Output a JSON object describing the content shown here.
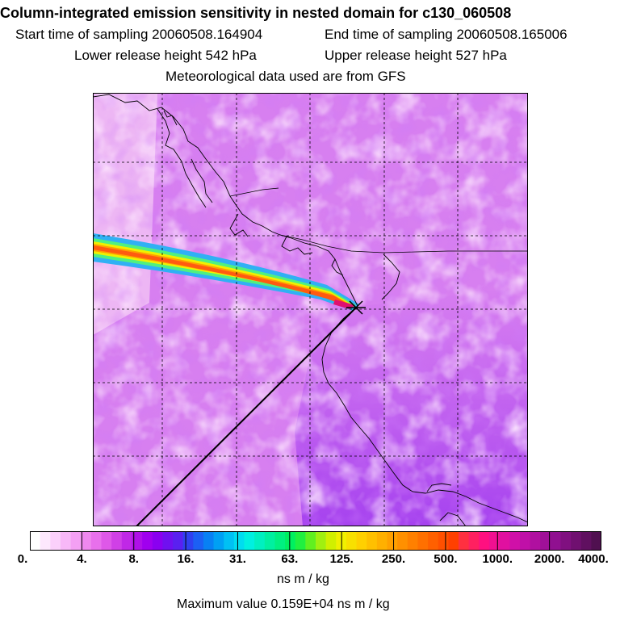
{
  "header": {
    "title": "Column-integrated emission sensitivity in nested domain for c130_060508",
    "start_time": "Start time of sampling 20060508.164904",
    "end_time": "End time of sampling 20060508.165006",
    "lower_height": "Lower release height  542 hPa",
    "upper_height": "Upper release height  527 hPa",
    "met_data": "Meteorological data used are from GFS"
  },
  "colorbar": {
    "labels": [
      "0.",
      "4.",
      "8.",
      "16.",
      "31.",
      "63.",
      "125.",
      "250.",
      "500.",
      "1000.",
      "2000.",
      "4000."
    ],
    "colors": [
      "#ffffff",
      "#fde8fd",
      "#fbd0fb",
      "#f8b8f8",
      "#f4a0f4",
      "#ef88ef",
      "#e870ec",
      "#de58e8",
      "#d040e6",
      "#c028e6",
      "#b010e8",
      "#a000ee",
      "#8a00f0",
      "#7010f0",
      "#5a20f0",
      "#3040f0",
      "#1c60f4",
      "#0880f4",
      "#00a0f4",
      "#00c0f4",
      "#00dcf0",
      "#00f0e0",
      "#00f0c0",
      "#00f0a0",
      "#00f080",
      "#00f060",
      "#20f040",
      "#60f020",
      "#a0f010",
      "#d0f000",
      "#f0f000",
      "#f8e000",
      "#ffd000",
      "#ffc000",
      "#ffb000",
      "#ffa000",
      "#ff9000",
      "#ff8000",
      "#ff7000",
      "#ff6000",
      "#ff5000",
      "#ff4000",
      "#ff3040",
      "#ff2060",
      "#ff1080",
      "#f01090",
      "#e010a0",
      "#d010a8",
      "#c010a8",
      "#b010a0",
      "#a01098",
      "#901090",
      "#801080",
      "#701070",
      "#601060",
      "#501050"
    ],
    "unit": "ns m / kg"
  },
  "footer": {
    "unit": "ns m / kg",
    "max_value": "Maximum value  0.159E+04 ns m / kg"
  },
  "map": {
    "background_color": "#d880f0",
    "release_marker": "x-marker",
    "grid": "dashed"
  }
}
